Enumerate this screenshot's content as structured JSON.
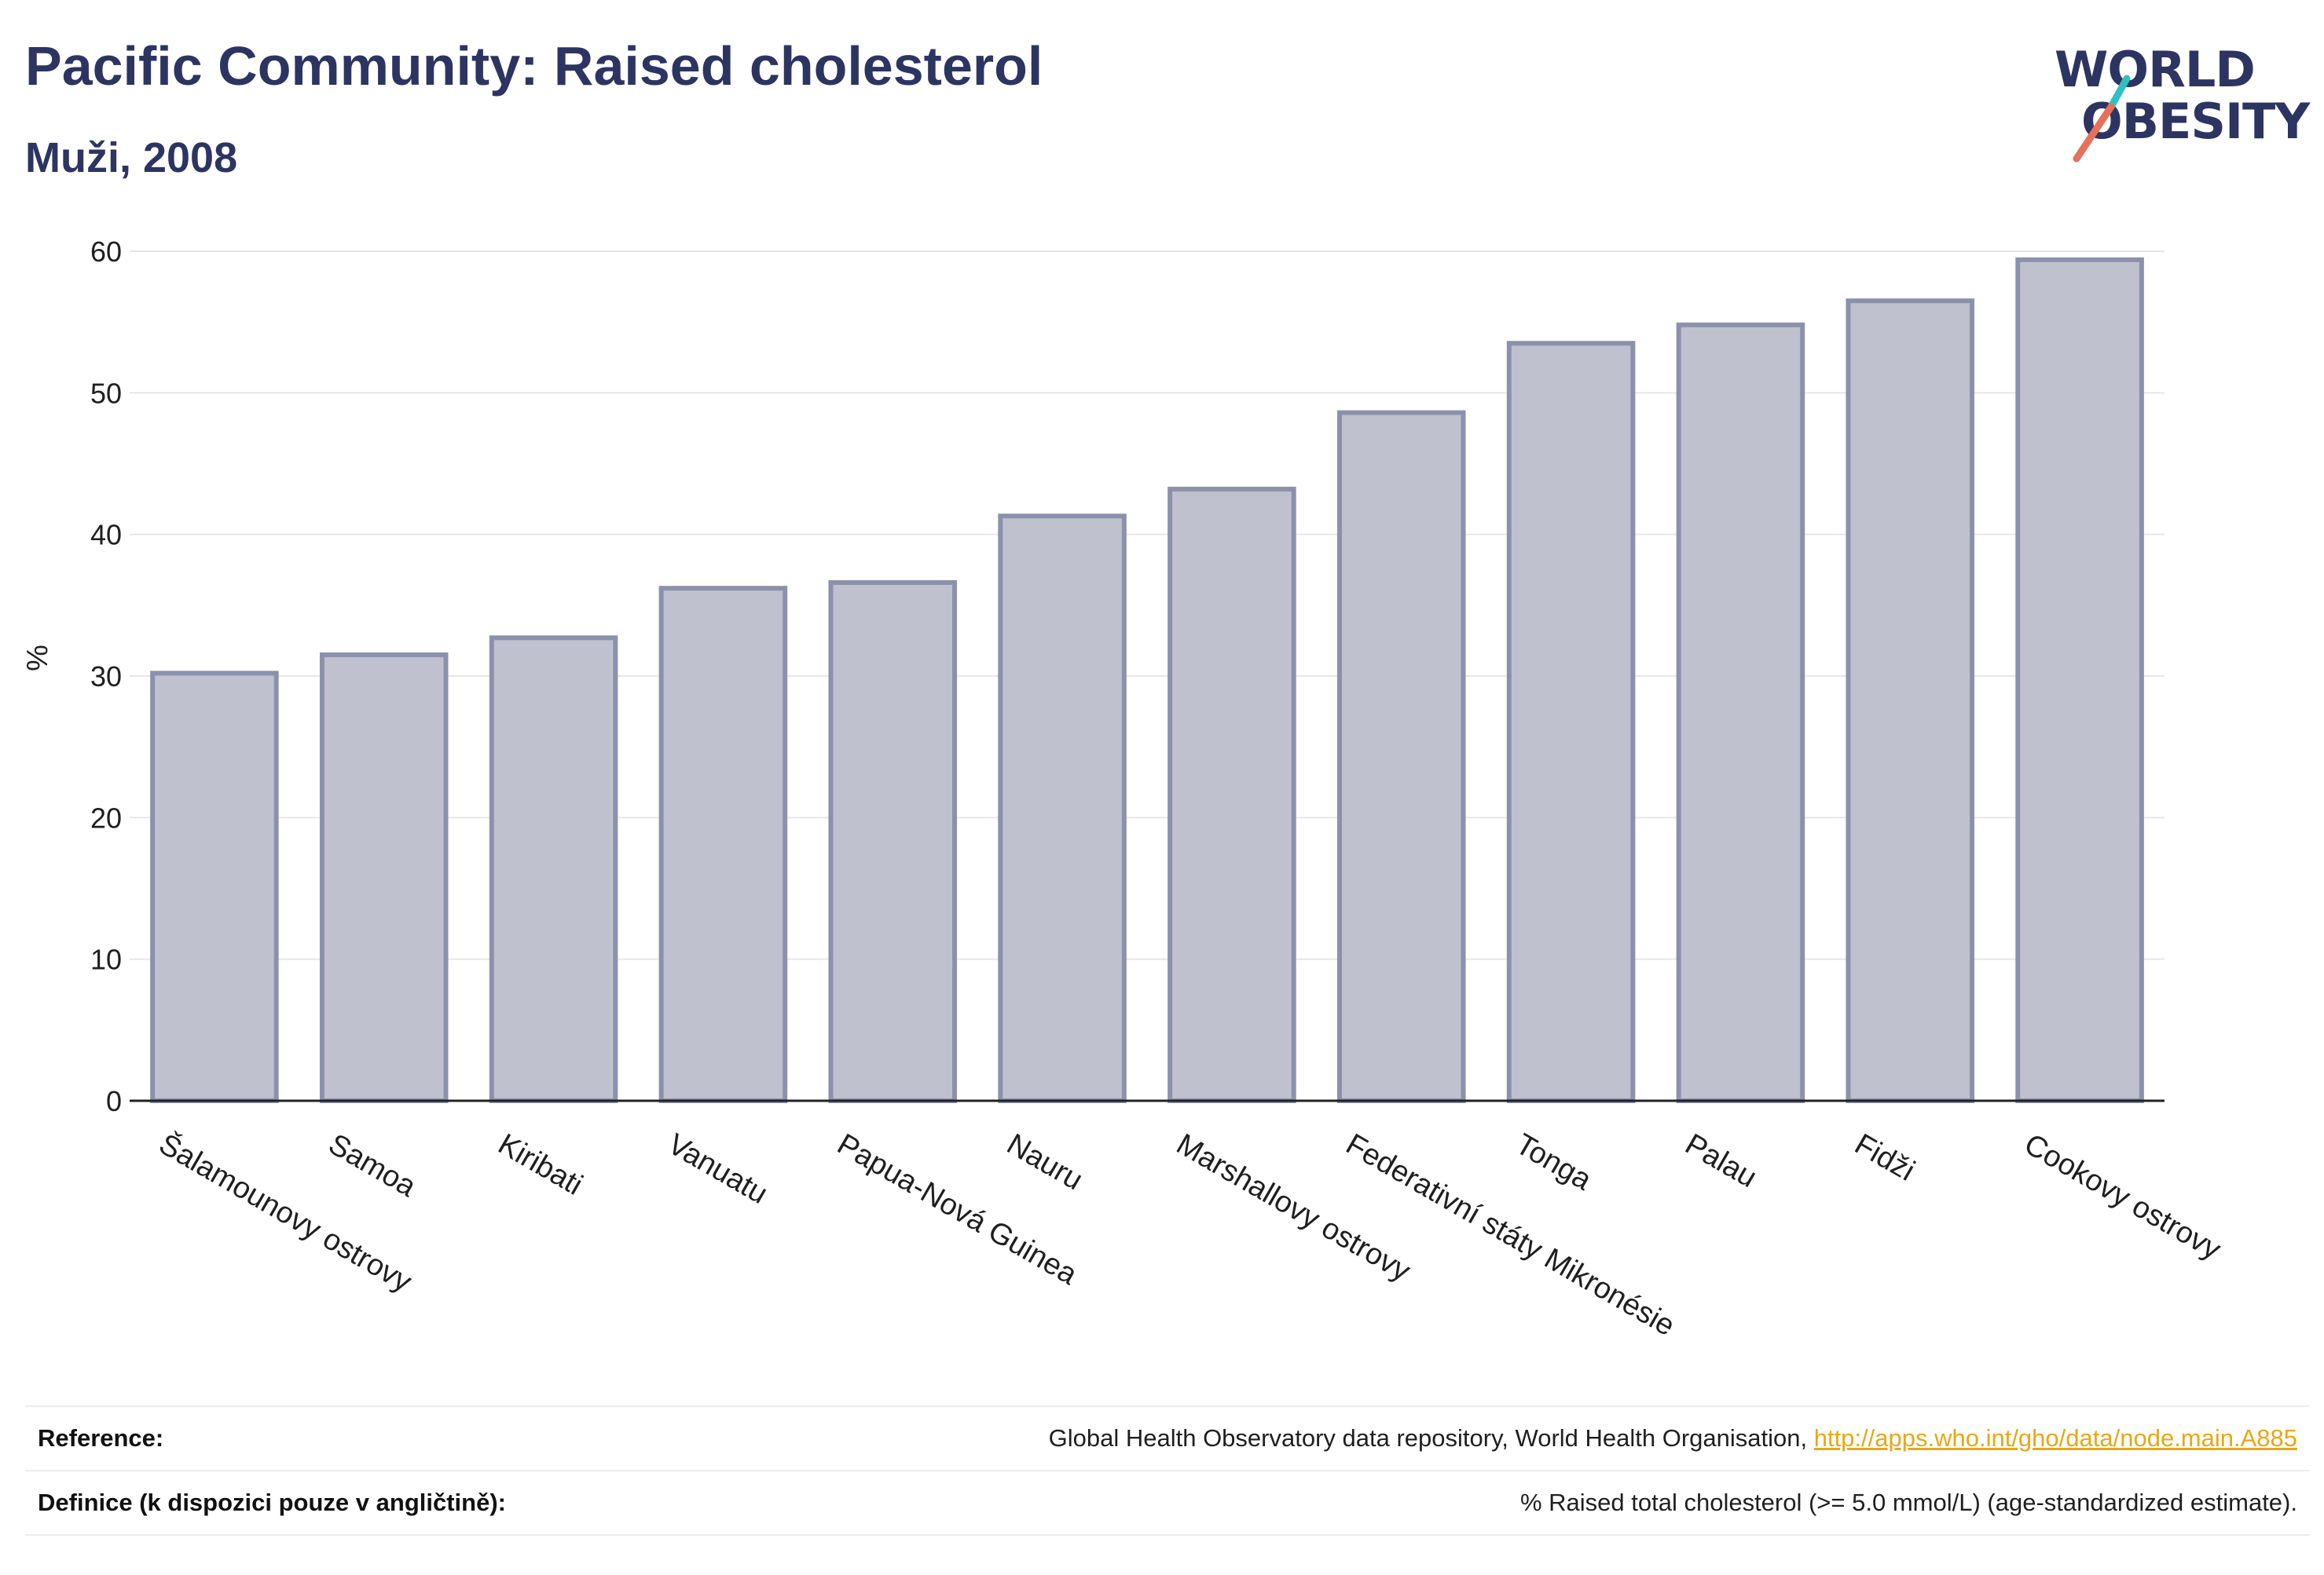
{
  "header": {
    "title": "Pacific Community: Raised cholesterol",
    "subtitle": "Muži, 2008"
  },
  "logo": {
    "line1": "WORLD",
    "line2": "OBESITY",
    "slash_colors": [
      "#2fc1c1",
      "#e8705a"
    ]
  },
  "chart_data": {
    "type": "bar",
    "title": "Pacific Community: Raised cholesterol",
    "subtitle": "Muži, 2008",
    "ylabel": "%",
    "xlabel": "",
    "ylim": [
      0,
      60
    ],
    "yticks": [
      0,
      10,
      20,
      30,
      40,
      50,
      60
    ],
    "grid": true,
    "bar_color": "#bfc1ce",
    "bar_edge_color": "#8c91ab",
    "categories": [
      "Šalamounovy ostrovy",
      "Samoa",
      "Kiribati",
      "Vanuatu",
      "Papua-Nová Guinea",
      "Nauru",
      "Marshallovy ostrovy",
      "Federativní státy Mikronésie",
      "Tonga",
      "Palau",
      "Fidži",
      "Cookovy ostrovy"
    ],
    "values": [
      30.2,
      31.5,
      32.7,
      36.2,
      36.6,
      41.3,
      43.2,
      48.6,
      53.5,
      54.8,
      56.5,
      59.4
    ]
  },
  "footer": {
    "reference_label": "Reference:",
    "reference_text": "Global Health Observatory data repository, World Health Organisation, ",
    "reference_link": "http://apps.who.int/gho/data/node.main.A885",
    "definition_label": "Definice (k dispozici pouze v angličtině):",
    "definition_text": "% Raised total cholesterol (>= 5.0 mmol/L) (age-standardized estimate)."
  }
}
